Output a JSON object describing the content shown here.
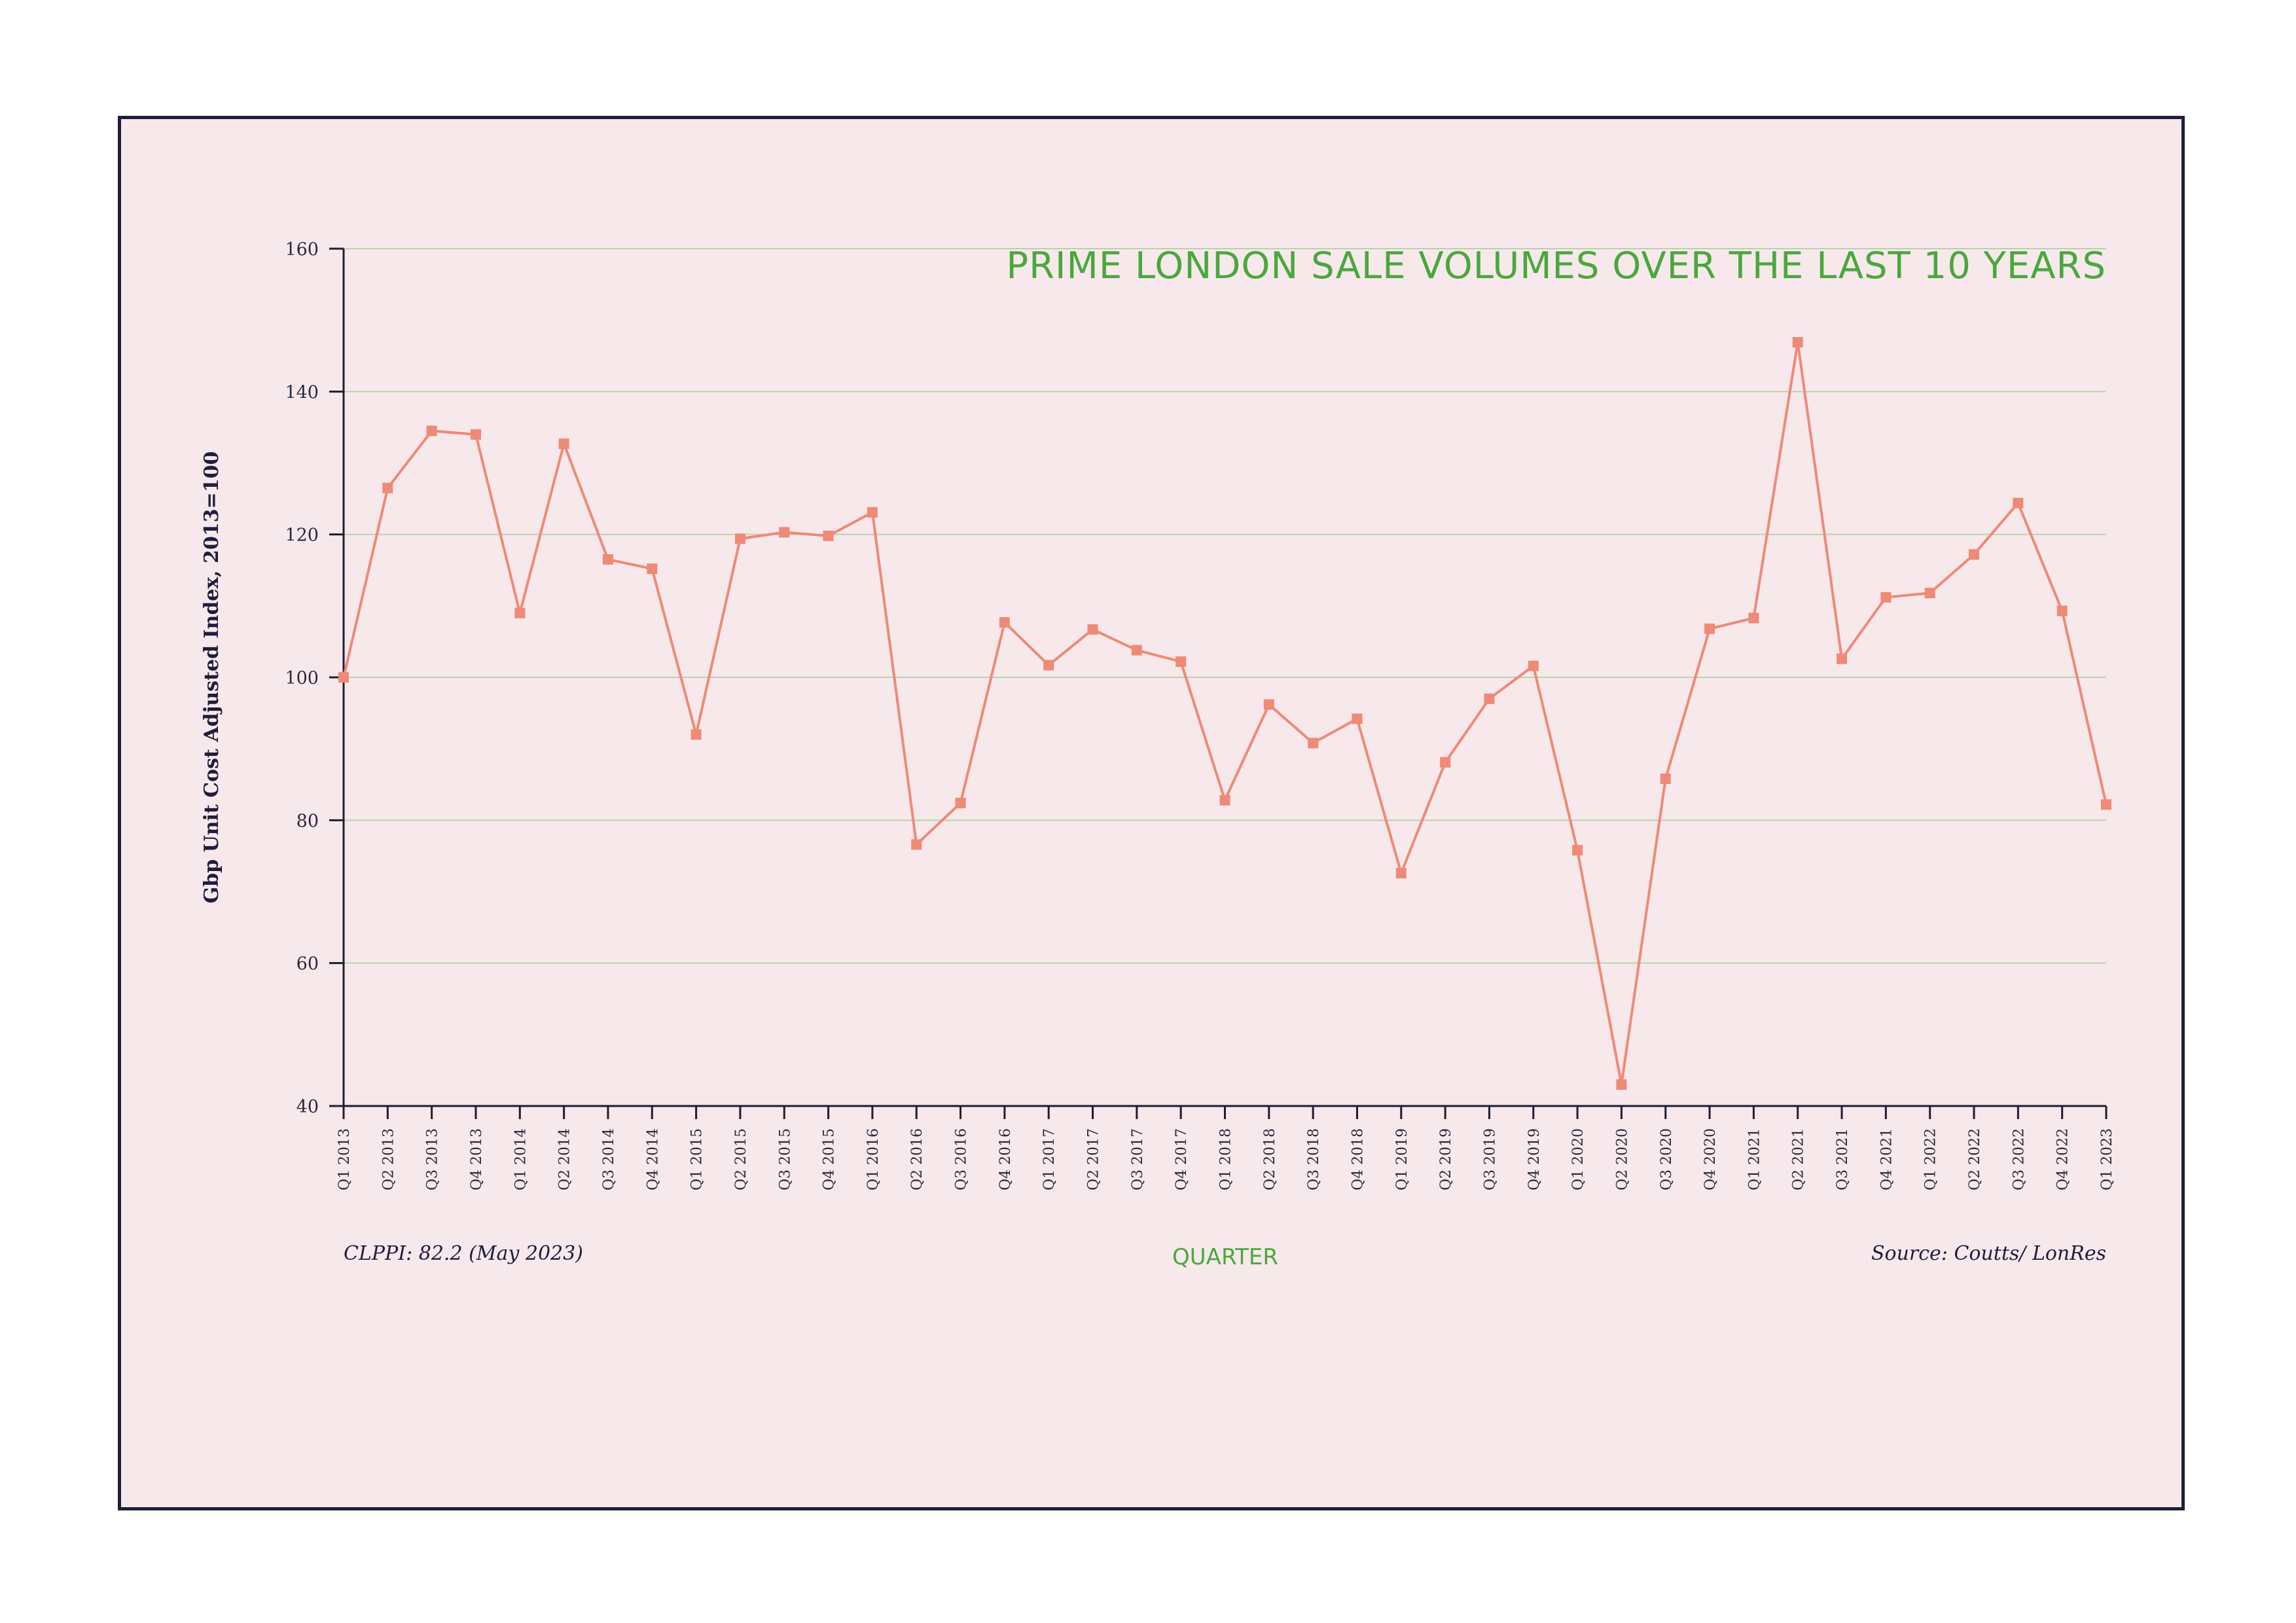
{
  "chart_data": {
    "type": "line",
    "title": "PRIME LONDON SALE VOLUMES OVER THE LAST 10 YEARS",
    "xlabel": "QUARTER",
    "ylabel": "Gbp Unit Cost Adjusted Index, 2013=100",
    "ylim": [
      40,
      160
    ],
    "yticks": [
      40,
      60,
      80,
      100,
      120,
      140,
      160
    ],
    "grid": true,
    "line_color": "#ee8a76",
    "marker_color": "#ee8a76",
    "grid_color": "#b9d4a8",
    "title_color": "#4aa83c",
    "note_left": "CLPPI: 82.2 (May 2023)",
    "note_right": "Source: Coutts/ LonRes",
    "categories": [
      "Q1 2013",
      "Q2 2013",
      "Q3 2013",
      "Q4 2013",
      "Q1 2014",
      "Q2 2014",
      "Q3 2014",
      "Q4 2014",
      "Q1 2015",
      "Q2 2015",
      "Q3 2015",
      "Q4 2015",
      "Q1 2016",
      "Q2 2016",
      "Q3 2016",
      "Q4 2016",
      "Q1 2017",
      "Q2 2017",
      "Q3 2017",
      "Q4 2017",
      "Q1 2018",
      "Q2 2018",
      "Q3 2018",
      "Q4 2018",
      "Q1 2019",
      "Q2 2019",
      "Q3 2019",
      "Q4 2019",
      "Q1 2020",
      "Q2 2020",
      "Q3 2020",
      "Q4 2020",
      "Q1 2021",
      "Q2 2021",
      "Q3 2021",
      "Q4 2021",
      "Q1 2022",
      "Q2 2022",
      "Q3 2022",
      "Q4 2022",
      "Q1 2023"
    ],
    "values": [
      100,
      126.5,
      134.5,
      134,
      109,
      132.7,
      116.5,
      115.2,
      92,
      119.4,
      120.3,
      119.8,
      123.1,
      76.6,
      82.4,
      107.7,
      101.7,
      106.7,
      103.8,
      102.2,
      82.8,
      96.2,
      90.8,
      94.2,
      72.6,
      88.1,
      97,
      101.6,
      75.8,
      43,
      85.8,
      106.8,
      108.3,
      146.9,
      102.6,
      111.2,
      111.8,
      117.2,
      124.4,
      109.3,
      82.2
    ]
  }
}
